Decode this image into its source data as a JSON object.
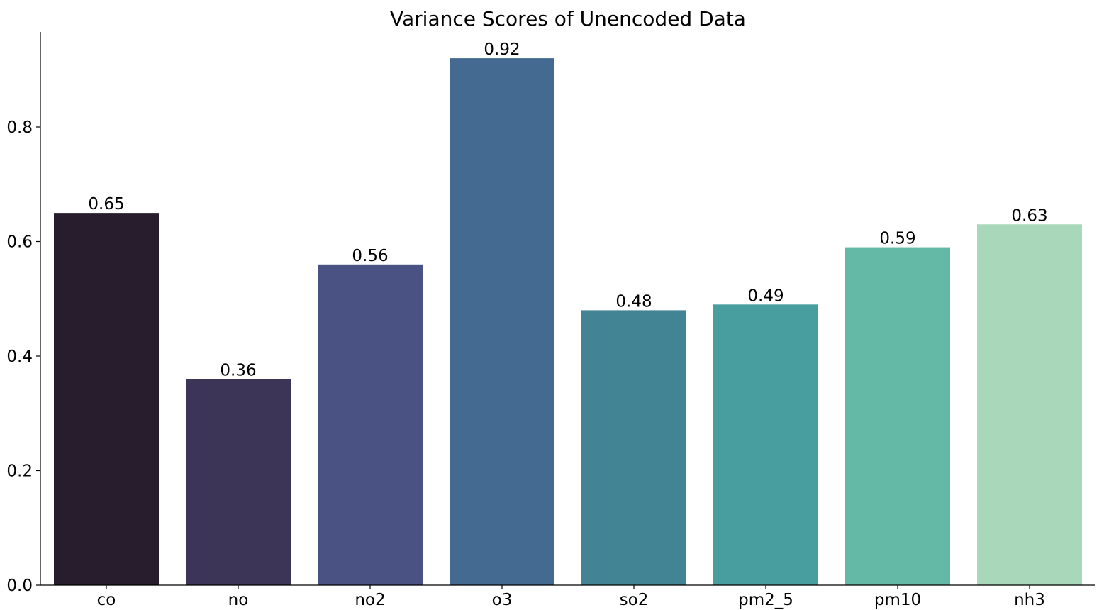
{
  "chart_data": {
    "type": "bar",
    "title": "Variance Scores of Unencoded Data",
    "xlabel": "",
    "ylabel": "",
    "categories": [
      "co",
      "no",
      "no2",
      "o3",
      "so2",
      "pm2_5",
      "pm10",
      "nh3"
    ],
    "values": [
      0.65,
      0.36,
      0.56,
      0.92,
      0.48,
      0.49,
      0.59,
      0.63
    ],
    "data_labels": [
      "0.65",
      "0.36",
      "0.56",
      "0.92",
      "0.48",
      "0.49",
      "0.59",
      "0.63"
    ],
    "colors": [
      "#271d2c",
      "#3d3558",
      "#495283",
      "#446a91",
      "#428494",
      "#489d9e",
      "#63b9a5",
      "#a8d8b9"
    ],
    "ylim": [
      0,
      0.966
    ],
    "yticks": [
      0.0,
      0.2,
      0.4,
      0.6,
      0.8
    ],
    "ytick_labels": [
      "0.0",
      "0.2",
      "0.4",
      "0.6",
      "0.8"
    ],
    "grid": false,
    "legend": "none",
    "spines": [
      "left",
      "bottom"
    ]
  }
}
